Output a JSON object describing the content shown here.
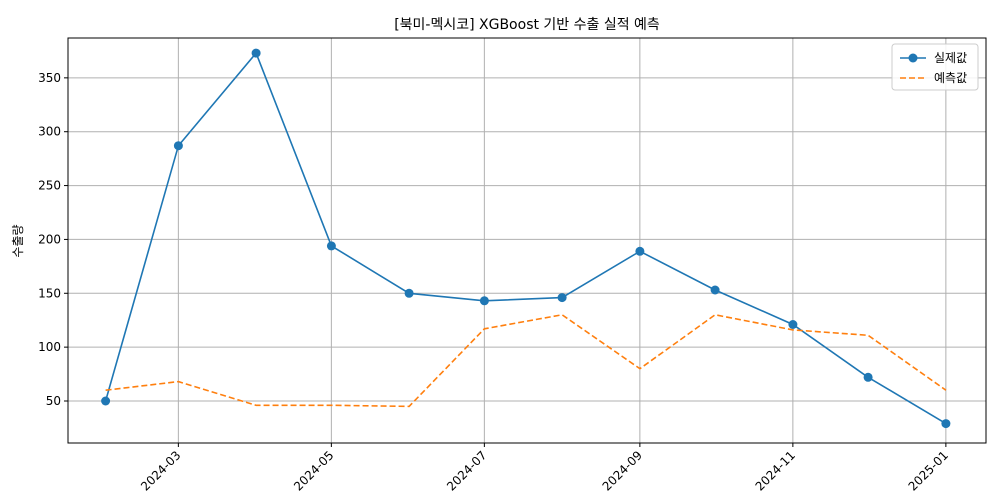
{
  "chart_data": {
    "type": "line",
    "title": "[북미-멕시코] XGBoost 기반 수출 실적 예측",
    "xlabel": "",
    "ylabel": "수출량",
    "x": [
      "2024-02-01",
      "2024-03-01",
      "2024-04-01",
      "2024-05-01",
      "2024-06-01",
      "2024-07-01",
      "2024-08-01",
      "2024-09-01",
      "2024-10-01",
      "2024-11-01",
      "2024-12-01",
      "2025-01-01"
    ],
    "x_ticks": [
      "2024-03",
      "2024-05",
      "2024-07",
      "2024-09",
      "2024-11",
      "2025-01"
    ],
    "y_ticks": [
      50,
      100,
      150,
      200,
      250,
      300,
      350
    ],
    "ylim": [
      11,
      387
    ],
    "xlim": [
      "2024-01-17",
      "2025-01-17"
    ],
    "grid": true,
    "legend_position": "top-right",
    "series": [
      {
        "name": "실제값",
        "color": "#1f77b4",
        "style": "solid",
        "marker": "circle",
        "values": [
          50,
          287,
          373,
          194,
          150,
          143,
          146,
          189,
          153,
          121,
          72,
          29
        ]
      },
      {
        "name": "예측값",
        "color": "#ff7f0e",
        "style": "dashed",
        "marker": "none",
        "values": [
          60,
          68,
          46,
          46,
          45,
          117,
          130,
          80,
          130,
          116,
          111,
          60
        ]
      }
    ]
  }
}
